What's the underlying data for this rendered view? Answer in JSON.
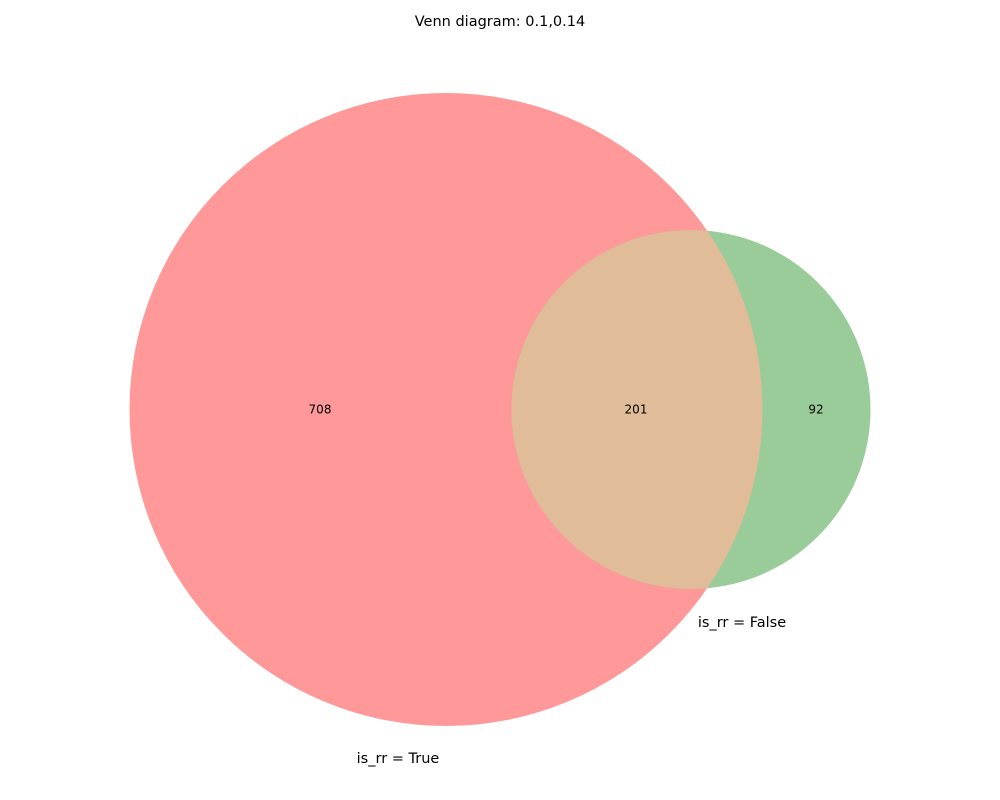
{
  "title": "Venn diagram: 0.1,0.14",
  "sets": [
    {
      "label": "is_rr = True",
      "color": "#ff9999"
    },
    {
      "label": "is_rr = False",
      "color": "#99cc99"
    }
  ],
  "overlap_color": "#e0bc99",
  "regions": {
    "only_a": "708",
    "both": "201",
    "only_b": "92"
  }
}
